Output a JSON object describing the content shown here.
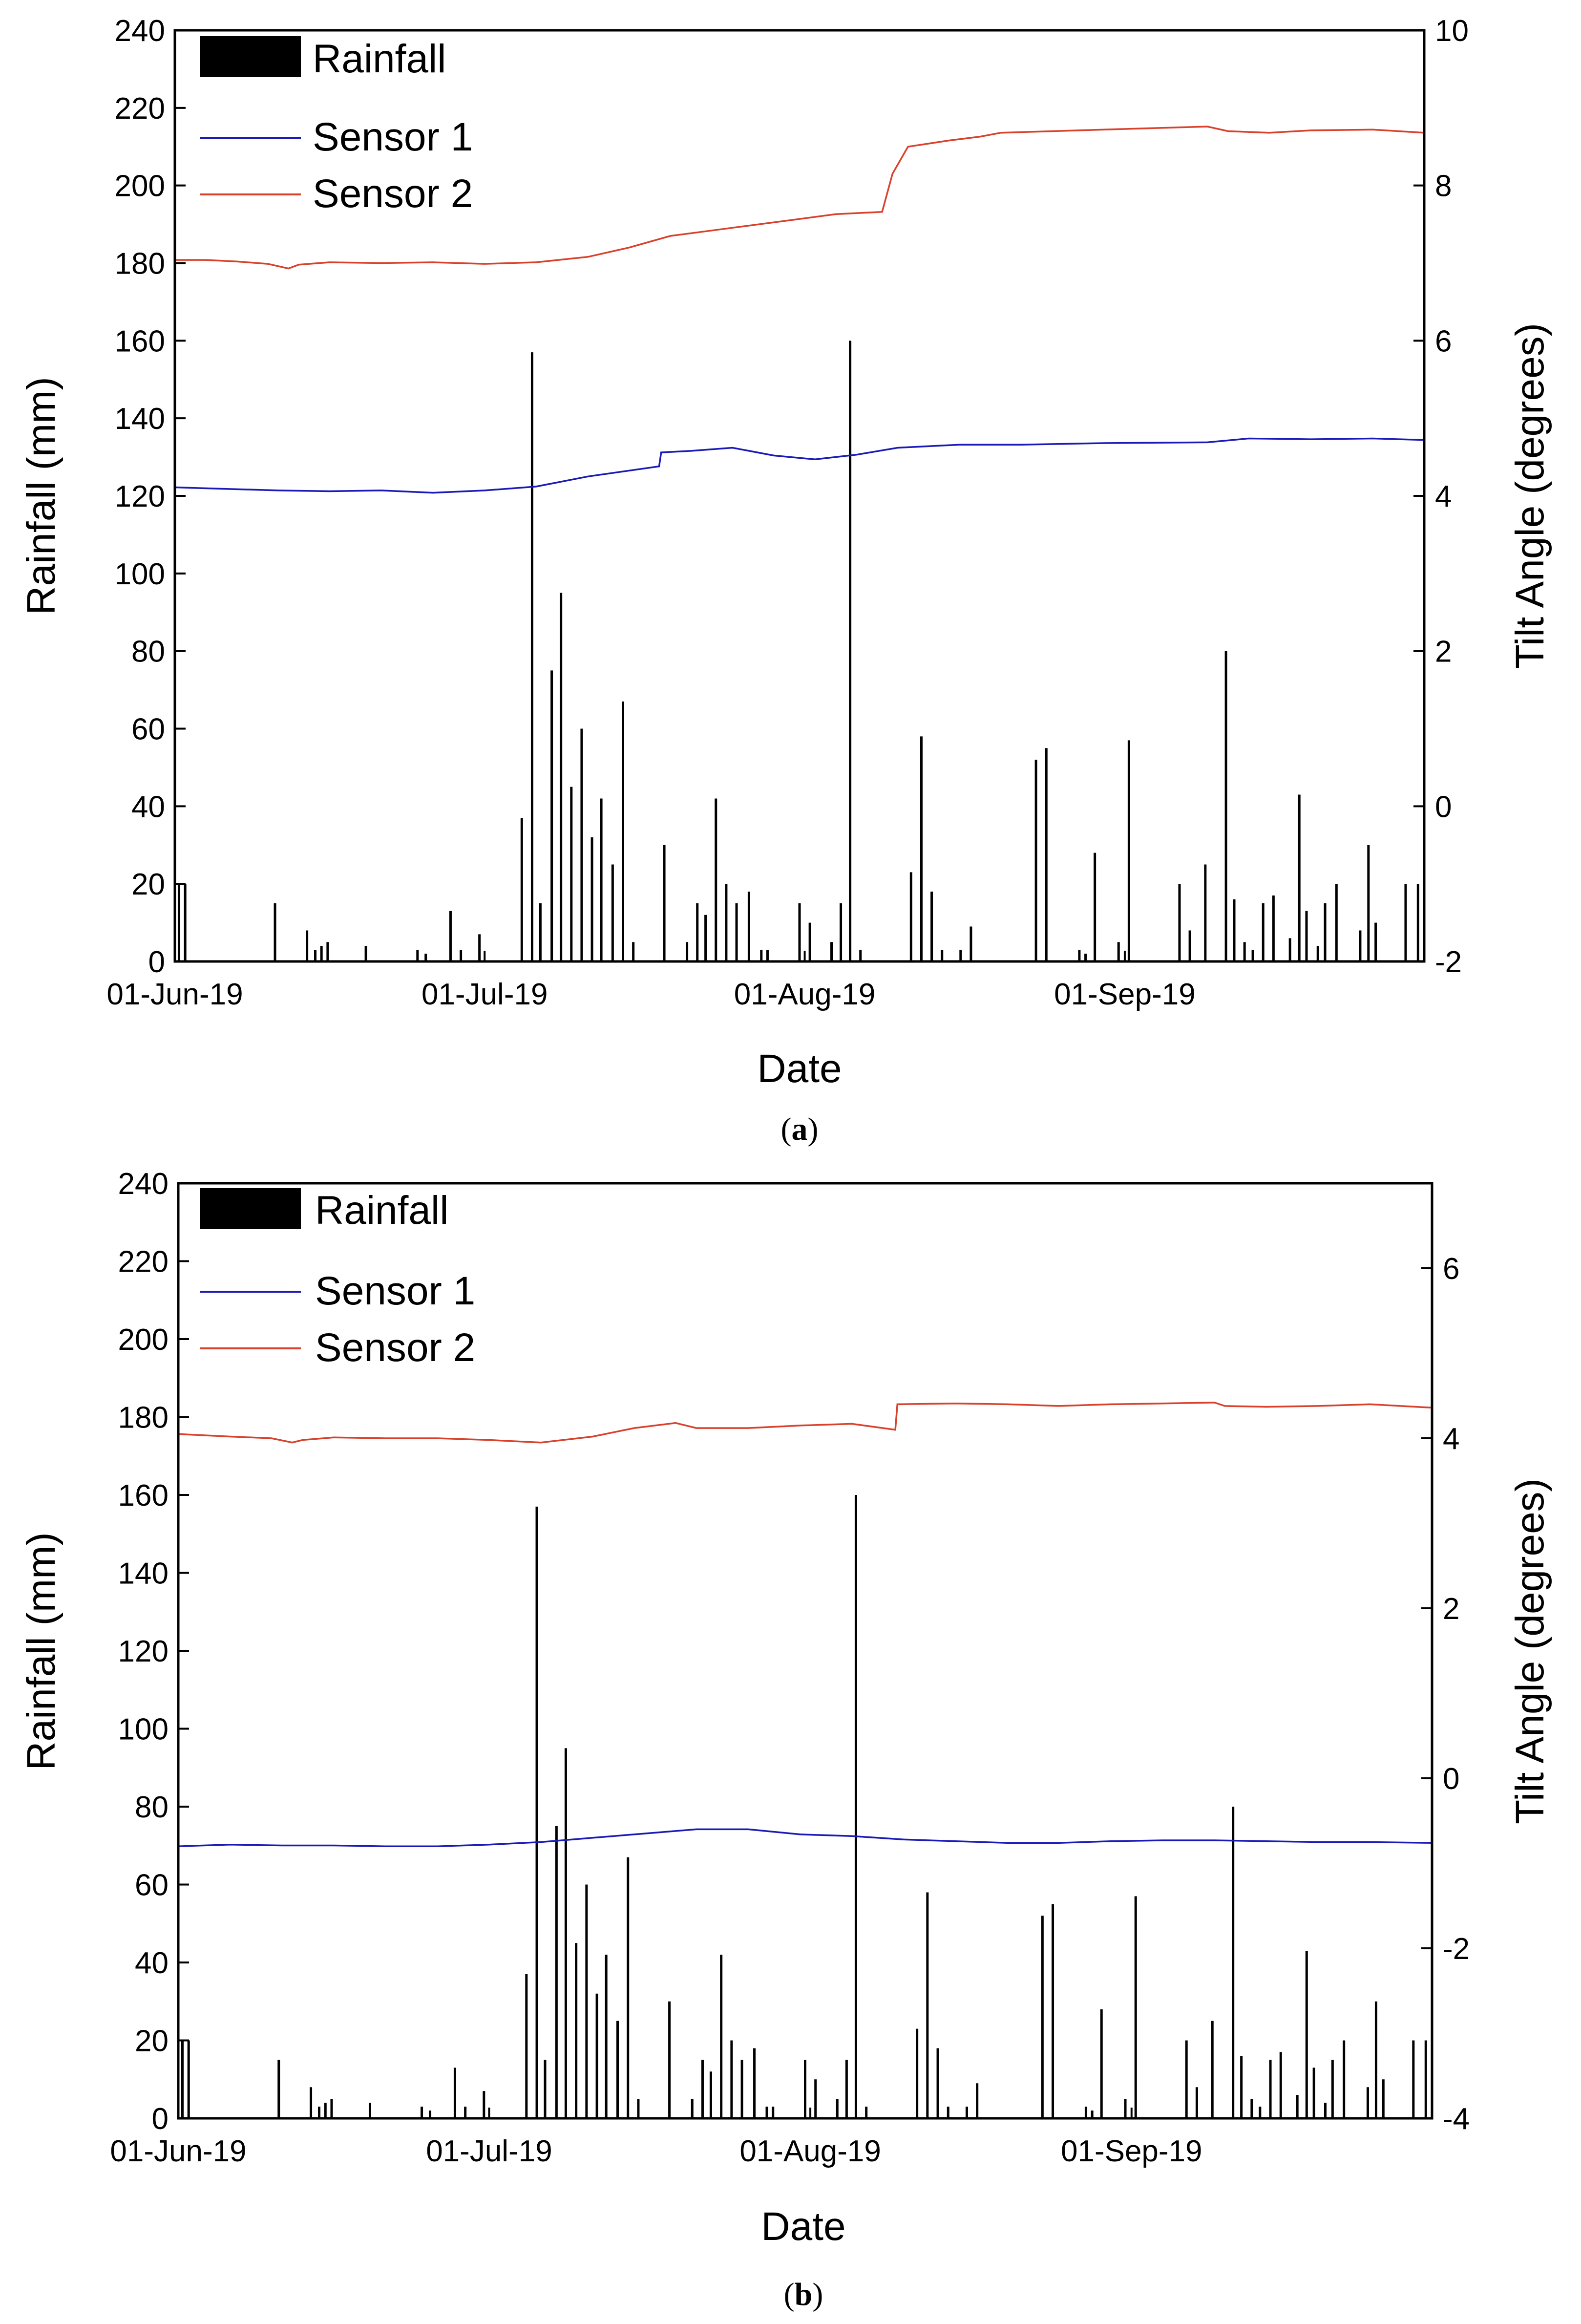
{
  "chart_data": [
    {
      "type": "bar+line",
      "panel_caption": "a",
      "xlabel": "Date",
      "ylabel_left": "Rainfall (mm)",
      "ylabel_right": "Tilt Angle (degrees)",
      "x_ticks": [
        "01-Jun-19",
        "01-Jul-19",
        "01-Aug-19",
        "01-Sep-19"
      ],
      "x_tick_days": [
        0,
        30,
        61,
        92
      ],
      "x_range_days": [
        0,
        121
      ],
      "y_left": {
        "min": 0,
        "max": 240,
        "ticks": [
          0,
          20,
          40,
          60,
          80,
          100,
          120,
          140,
          160,
          180,
          200,
          220,
          240
        ]
      },
      "y_right": {
        "min": -2,
        "max": 10,
        "ticks": [
          -2,
          0,
          2,
          4,
          6,
          8,
          10
        ]
      },
      "legend": [
        {
          "label": "Rainfall",
          "style": "bar",
          "color": "#000000"
        },
        {
          "label": "Sensor 1",
          "style": "line",
          "color": "#1a1ab8"
        },
        {
          "label": "Sensor 2",
          "style": "line",
          "color": "#d9412b"
        }
      ],
      "rainfall": [
        [
          0.4,
          20
        ],
        [
          1.0,
          20
        ],
        [
          9.7,
          15
        ],
        [
          12.8,
          8
        ],
        [
          13.6,
          3
        ],
        [
          14.2,
          4
        ],
        [
          14.8,
          5
        ],
        [
          18.5,
          4
        ],
        [
          23.5,
          3
        ],
        [
          24.3,
          2
        ],
        [
          26.7,
          13
        ],
        [
          27.7,
          3
        ],
        [
          29.5,
          7
        ],
        [
          33.6,
          37
        ],
        [
          34.6,
          157
        ],
        [
          35.4,
          15
        ],
        [
          36.5,
          75
        ],
        [
          37.4,
          95
        ],
        [
          38.4,
          45
        ],
        [
          39.4,
          60
        ],
        [
          40.4,
          32
        ],
        [
          41.3,
          42
        ],
        [
          42.4,
          25
        ],
        [
          43.4,
          67
        ],
        [
          44.4,
          5
        ],
        [
          47.4,
          30
        ],
        [
          49.6,
          5
        ],
        [
          50.6,
          15
        ],
        [
          51.4,
          12
        ],
        [
          52.4,
          42
        ],
        [
          53.4,
          20
        ],
        [
          54.4,
          15
        ],
        [
          55.6,
          18
        ],
        [
          56.8,
          3
        ],
        [
          57.4,
          3
        ],
        [
          60.5,
          15
        ],
        [
          61.5,
          10
        ],
        [
          63.6,
          5
        ],
        [
          64.5,
          15
        ],
        [
          65.4,
          160
        ],
        [
          66.4,
          3
        ],
        [
          71.3,
          23
        ],
        [
          72.3,
          58
        ],
        [
          73.3,
          18
        ],
        [
          74.3,
          3
        ],
        [
          76.1,
          3
        ],
        [
          77.1,
          9
        ],
        [
          83.4,
          52
        ],
        [
          84.4,
          55
        ],
        [
          87.6,
          3
        ],
        [
          88.2,
          2
        ],
        [
          89.1,
          28
        ],
        [
          91.4,
          5
        ],
        [
          92.4,
          57
        ],
        [
          97.3,
          20
        ],
        [
          98.3,
          8
        ],
        [
          99.8,
          25
        ],
        [
          101.8,
          80
        ],
        [
          102.6,
          16
        ],
        [
          103.6,
          5
        ],
        [
          104.4,
          3
        ],
        [
          105.4,
          15
        ],
        [
          106.4,
          17
        ],
        [
          108.0,
          6
        ],
        [
          108.9,
          43
        ],
        [
          109.6,
          13
        ],
        [
          110.7,
          4
        ],
        [
          111.4,
          15
        ],
        [
          112.5,
          20
        ],
        [
          114.8,
          8
        ],
        [
          115.6,
          30
        ],
        [
          116.3,
          10
        ],
        [
          119.2,
          20
        ],
        [
          120.4,
          20
        ]
      ],
      "sensor1_tilt": [
        [
          0,
          4.11
        ],
        [
          5,
          4.09
        ],
        [
          10,
          4.07
        ],
        [
          15,
          4.06
        ],
        [
          20,
          4.07
        ],
        [
          25,
          4.04
        ],
        [
          30,
          4.07
        ],
        [
          35,
          4.12
        ],
        [
          40,
          4.25
        ],
        [
          46.9,
          4.38
        ],
        [
          47.1,
          4.56
        ],
        [
          50,
          4.58
        ],
        [
          54,
          4.62
        ],
        [
          58,
          4.52
        ],
        [
          62,
          4.47
        ],
        [
          66,
          4.53
        ],
        [
          70,
          4.62
        ],
        [
          76,
          4.66
        ],
        [
          82,
          4.66
        ],
        [
          90,
          4.68
        ],
        [
          100,
          4.69
        ],
        [
          104,
          4.74
        ],
        [
          110,
          4.73
        ],
        [
          116,
          4.74
        ],
        [
          121,
          4.72
        ]
      ],
      "sensor2_tilt": [
        [
          0,
          7.04
        ],
        [
          3,
          7.04
        ],
        [
          6,
          7.02
        ],
        [
          9,
          6.99
        ],
        [
          11,
          6.93
        ],
        [
          12,
          6.98
        ],
        [
          15,
          7.01
        ],
        [
          20,
          7.0
        ],
        [
          25,
          7.01
        ],
        [
          30,
          6.99
        ],
        [
          35,
          7.01
        ],
        [
          40,
          7.08
        ],
        [
          44,
          7.2
        ],
        [
          48,
          7.35
        ],
        [
          52,
          7.42
        ],
        [
          56,
          7.49
        ],
        [
          60,
          7.56
        ],
        [
          64,
          7.63
        ],
        [
          68.5,
          7.66
        ],
        [
          69.5,
          8.15
        ],
        [
          71,
          8.5
        ],
        [
          75,
          8.58
        ],
        [
          78,
          8.63
        ],
        [
          80,
          8.68
        ],
        [
          85,
          8.7
        ],
        [
          90,
          8.72
        ],
        [
          95,
          8.74
        ],
        [
          100,
          8.76
        ],
        [
          102,
          8.7
        ],
        [
          106,
          8.68
        ],
        [
          110,
          8.71
        ],
        [
          116,
          8.72
        ],
        [
          121,
          8.68
        ]
      ]
    },
    {
      "type": "bar+line",
      "panel_caption": "b",
      "xlabel": "Date",
      "ylabel_left": "Rainfall (mm)",
      "ylabel_right": "Tilt Angle (degrees)",
      "x_ticks": [
        "01-Jun-19",
        "01-Jul-19",
        "01-Aug-19",
        "01-Sep-19"
      ],
      "x_tick_days": [
        0,
        30,
        61,
        92
      ],
      "x_range_days": [
        0,
        121
      ],
      "y_left": {
        "min": 0,
        "max": 240,
        "ticks": [
          0,
          20,
          40,
          60,
          80,
          100,
          120,
          140,
          160,
          180,
          200,
          220,
          240
        ]
      },
      "y_right": {
        "min": -4,
        "max": 7,
        "ticks": [
          -4,
          -2,
          0,
          2,
          4,
          6
        ]
      },
      "legend": [
        {
          "label": "Rainfall",
          "style": "bar",
          "color": "#000000"
        },
        {
          "label": "Sensor 1",
          "style": "line",
          "color": "#1a1ab8"
        },
        {
          "label": "Sensor 2",
          "style": "line",
          "color": "#d9412b"
        }
      ],
      "rainfall": [
        [
          0.4,
          20
        ],
        [
          1.0,
          20
        ],
        [
          9.7,
          15
        ],
        [
          12.8,
          8
        ],
        [
          13.6,
          3
        ],
        [
          14.2,
          4
        ],
        [
          14.8,
          5
        ],
        [
          18.5,
          4
        ],
        [
          23.5,
          3
        ],
        [
          24.3,
          2
        ],
        [
          26.7,
          13
        ],
        [
          27.7,
          3
        ],
        [
          29.5,
          7
        ],
        [
          33.6,
          37
        ],
        [
          34.6,
          157
        ],
        [
          35.4,
          15
        ],
        [
          36.5,
          75
        ],
        [
          37.4,
          95
        ],
        [
          38.4,
          45
        ],
        [
          39.4,
          60
        ],
        [
          40.4,
          32
        ],
        [
          41.3,
          42
        ],
        [
          42.4,
          25
        ],
        [
          43.4,
          67
        ],
        [
          44.4,
          5
        ],
        [
          47.4,
          30
        ],
        [
          49.6,
          5
        ],
        [
          50.6,
          15
        ],
        [
          51.4,
          12
        ],
        [
          52.4,
          42
        ],
        [
          53.4,
          20
        ],
        [
          54.4,
          15
        ],
        [
          55.6,
          18
        ],
        [
          56.8,
          3
        ],
        [
          57.4,
          3
        ],
        [
          60.5,
          15
        ],
        [
          61.5,
          10
        ],
        [
          63.6,
          5
        ],
        [
          64.5,
          15
        ],
        [
          65.4,
          160
        ],
        [
          66.4,
          3
        ],
        [
          71.3,
          23
        ],
        [
          72.3,
          58
        ],
        [
          73.3,
          18
        ],
        [
          74.3,
          3
        ],
        [
          76.1,
          3
        ],
        [
          77.1,
          9
        ],
        [
          83.4,
          52
        ],
        [
          84.4,
          55
        ],
        [
          87.6,
          3
        ],
        [
          88.2,
          2
        ],
        [
          89.1,
          28
        ],
        [
          91.4,
          5
        ],
        [
          92.4,
          57
        ],
        [
          97.3,
          20
        ],
        [
          98.3,
          8
        ],
        [
          99.8,
          25
        ],
        [
          101.8,
          80
        ],
        [
          102.6,
          16
        ],
        [
          103.6,
          5
        ],
        [
          104.4,
          3
        ],
        [
          105.4,
          15
        ],
        [
          106.4,
          17
        ],
        [
          108.0,
          6
        ],
        [
          108.9,
          43
        ],
        [
          109.6,
          13
        ],
        [
          110.7,
          4
        ],
        [
          111.4,
          15
        ],
        [
          112.5,
          20
        ],
        [
          114.8,
          8
        ],
        [
          115.6,
          30
        ],
        [
          116.3,
          10
        ],
        [
          119.2,
          20
        ],
        [
          120.4,
          20
        ]
      ],
      "sensor1_tilt": [
        [
          0,
          -0.8
        ],
        [
          5,
          -0.78
        ],
        [
          10,
          -0.79
        ],
        [
          15,
          -0.79
        ],
        [
          20,
          -0.8
        ],
        [
          25,
          -0.8
        ],
        [
          30,
          -0.78
        ],
        [
          35,
          -0.75
        ],
        [
          40,
          -0.7
        ],
        [
          45,
          -0.65
        ],
        [
          50,
          -0.6
        ],
        [
          55,
          -0.6
        ],
        [
          60,
          -0.66
        ],
        [
          65,
          -0.68
        ],
        [
          70,
          -0.72
        ],
        [
          75,
          -0.74
        ],
        [
          80,
          -0.76
        ],
        [
          85,
          -0.76
        ],
        [
          90,
          -0.74
        ],
        [
          95,
          -0.73
        ],
        [
          100,
          -0.73
        ],
        [
          105,
          -0.74
        ],
        [
          110,
          -0.75
        ],
        [
          115,
          -0.75
        ],
        [
          121,
          -0.76
        ]
      ],
      "sensor2_tilt": [
        [
          0,
          4.05
        ],
        [
          5,
          4.02
        ],
        [
          9,
          4.0
        ],
        [
          11,
          3.95
        ],
        [
          12,
          3.98
        ],
        [
          15,
          4.01
        ],
        [
          20,
          4.0
        ],
        [
          25,
          4.0
        ],
        [
          30,
          3.98
        ],
        [
          35,
          3.95
        ],
        [
          40,
          4.02
        ],
        [
          44,
          4.12
        ],
        [
          48,
          4.18
        ],
        [
          50,
          4.12
        ],
        [
          55,
          4.12
        ],
        [
          60,
          4.15
        ],
        [
          65,
          4.17
        ],
        [
          69.2,
          4.1
        ],
        [
          69.4,
          4.4
        ],
        [
          75,
          4.41
        ],
        [
          80,
          4.4
        ],
        [
          85,
          4.38
        ],
        [
          90,
          4.4
        ],
        [
          95,
          4.41
        ],
        [
          100,
          4.42
        ],
        [
          101,
          4.38
        ],
        [
          105,
          4.37
        ],
        [
          110,
          4.38
        ],
        [
          115,
          4.4
        ],
        [
          121,
          4.36
        ]
      ]
    }
  ]
}
